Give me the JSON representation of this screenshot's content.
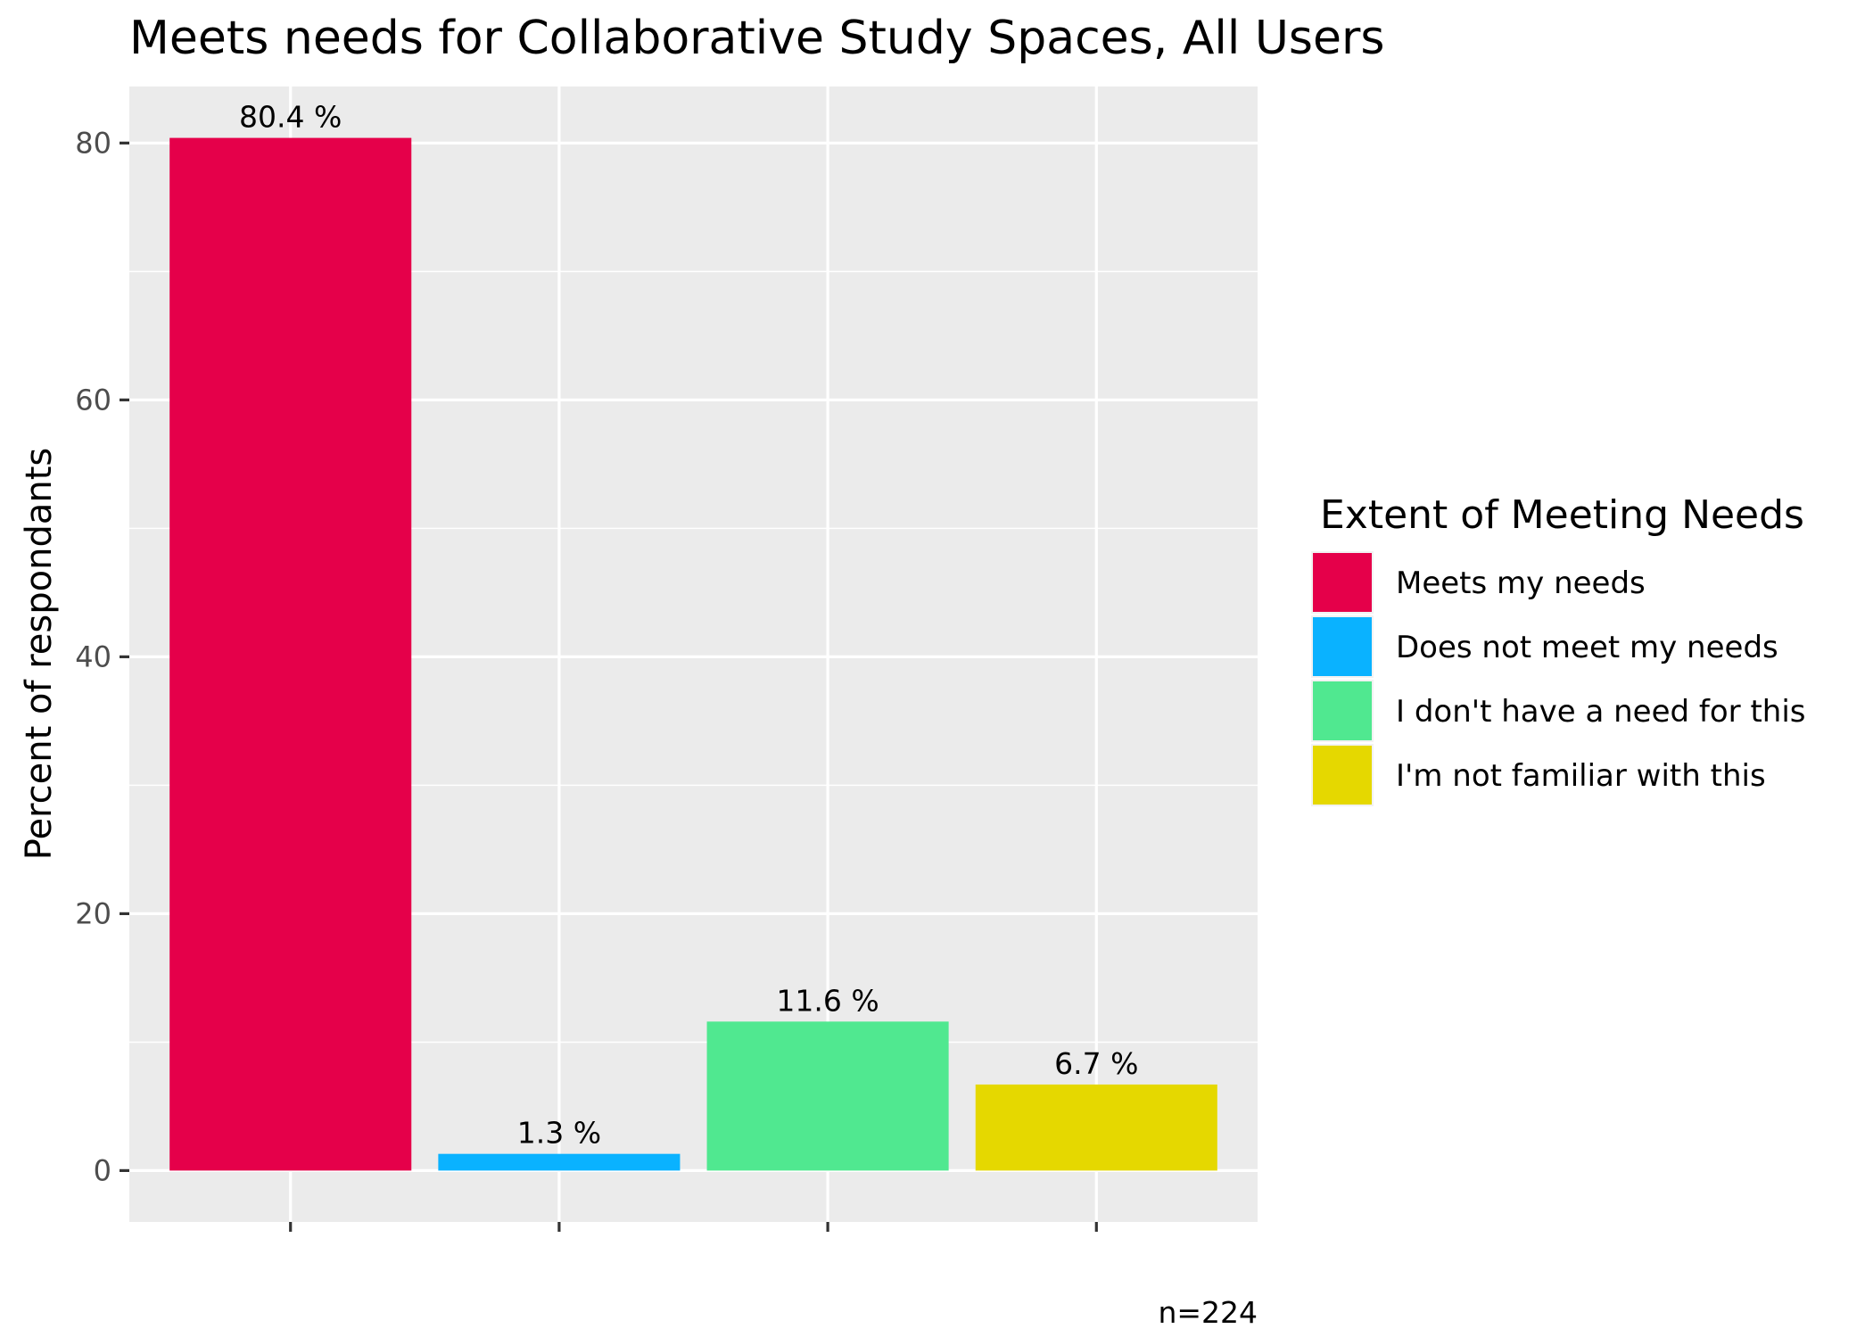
{
  "chart_data": {
    "type": "bar",
    "title": "Meets needs for Collaborative Study Spaces, All Users",
    "xlabel": "",
    "ylabel": "Percent of respondants",
    "ylim": [
      -4,
      84.4
    ],
    "yticks": [
      0,
      20,
      40,
      60,
      80
    ],
    "grid": true,
    "legend_position": "right",
    "legend_title": "Extent of Meeting Needs",
    "caption": "n=224",
    "categories": [
      "Meets my needs",
      "Does not meet my needs",
      "I don't have a need for this",
      "I'm not familiar with this"
    ],
    "values": [
      80.4,
      1.3,
      11.6,
      6.7
    ],
    "value_labels": [
      "80.4 %",
      "1.3 %",
      "11.6 %",
      "6.7 %"
    ],
    "colors": [
      "#e5004a",
      "#0ab2ff",
      "#50e890",
      "#e5d800"
    ],
    "panel_background": "#ebebeb",
    "grid_color": "#ffffff"
  }
}
